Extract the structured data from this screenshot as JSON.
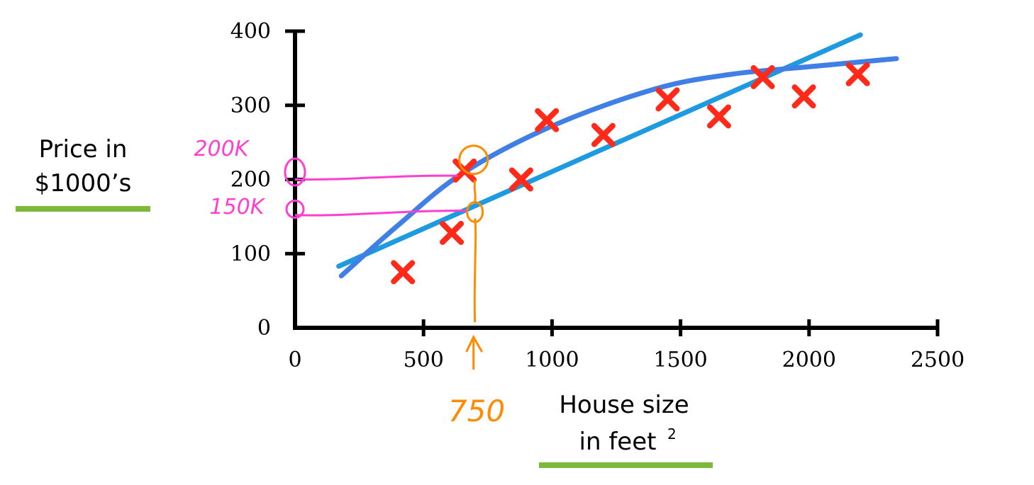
{
  "chart_data": {
    "type": "scatter",
    "xlabel_line1": "House size",
    "xlabel_line2": "in feet",
    "xlabel_sup": "2",
    "ylabel_line1": "Price in",
    "ylabel_line2": "$1000’s",
    "xlim": [
      0,
      2500
    ],
    "ylim": [
      0,
      400
    ],
    "x_ticks": [
      0,
      500,
      1000,
      1500,
      2000,
      2500
    ],
    "y_ticks": [
      0,
      100,
      200,
      300,
      400
    ],
    "points": [
      {
        "x": 420,
        "y": 75
      },
      {
        "x": 610,
        "y": 128
      },
      {
        "x": 660,
        "y": 212
      },
      {
        "x": 880,
        "y": 200
      },
      {
        "x": 980,
        "y": 280
      },
      {
        "x": 1200,
        "y": 260
      },
      {
        "x": 1450,
        "y": 308
      },
      {
        "x": 1650,
        "y": 285
      },
      {
        "x": 1820,
        "y": 338
      },
      {
        "x": 1980,
        "y": 312
      },
      {
        "x": 2190,
        "y": 342
      }
    ],
    "series": [
      {
        "kind": "straight-line fit",
        "points": [
          [
            170,
            83
          ],
          [
            2200,
            395
          ]
        ]
      },
      {
        "kind": "curve fit",
        "points": [
          [
            180,
            70
          ],
          [
            400,
            138
          ],
          [
            650,
            208
          ],
          [
            1000,
            272
          ],
          [
            1400,
            322
          ],
          [
            1700,
            342
          ],
          [
            2000,
            352
          ],
          [
            2340,
            363
          ]
        ]
      }
    ],
    "annotations": {
      "pink_200k": "200K",
      "pink_150k": "150K",
      "orange_750": "750",
      "query_x": 700,
      "curve_y_at_query": 217,
      "line_y_at_query": 159
    },
    "colors": {
      "points": "#ff2a1a",
      "line": "#1e9be0",
      "curve": "#3f7fe6",
      "pink": "#ff3fd0",
      "orange": "#ff8c00",
      "underline": "#7dba3c"
    }
  }
}
